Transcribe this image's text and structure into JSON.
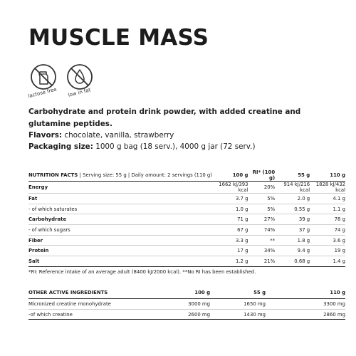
{
  "title": "MUSCLE MASS",
  "badges": [
    {
      "icon": "lactose-free-icon",
      "label": "lactose free"
    },
    {
      "icon": "low-in-fat-icon",
      "label": "low in fat"
    }
  ],
  "description": "Carbohydrate and protein drink powder, with added creatine and glutamine peptides.",
  "flavors": {
    "label": "Flavors:",
    "value": "chocolate, vanilla, strawberry"
  },
  "packaging": {
    "label": "Packaging size:",
    "value": "1000 g bag (18 serv.), 4000 g jar (72 serv.)"
  },
  "nutrition": {
    "title": "NUTRITION FACTS",
    "serving": "| Serving size: 55 g | Daily amount: 2 servings (110 g)",
    "columns": [
      "100 g",
      "RI* (100 g)",
      "55 g",
      "110 g"
    ],
    "rows": [
      {
        "name": "Energy",
        "v100": "1662 kJ/393 kcal",
        "ri": "20%",
        "v55": "914 kJ/216 kcal",
        "v110": "1828 kJ/432 kcal"
      },
      {
        "name": "Fat",
        "v100": "3.7 g",
        "ri": "5%",
        "v55": "2.0 g",
        "v110": "4.1 g"
      },
      {
        "name": "- of which saturates",
        "v100": "1.0 g",
        "ri": "5%",
        "v55": "0.55 g",
        "v110": "1.1 g"
      },
      {
        "name": "Carbohydrate",
        "v100": "71 g",
        "ri": "27%",
        "v55": "39 g",
        "v110": "78 g"
      },
      {
        "name": "- of which sugars",
        "v100": "67 g",
        "ri": "74%",
        "v55": "37 g",
        "v110": "74 g"
      },
      {
        "name": "Fiber",
        "v100": "3.3 g",
        "ri": "**",
        "v55": "1.8 g",
        "v110": "3.6 g"
      },
      {
        "name": "Protein",
        "v100": "17 g",
        "ri": "34%",
        "v55": "9.4 g",
        "v110": "19 g"
      },
      {
        "name": "Salt",
        "v100": "1.2 g",
        "ri": "21%",
        "v55": "0.68 g",
        "v110": "1.4 g"
      }
    ],
    "footnote": "*RI: Reference intake of an average adult (8400 kJ/2000 kcal). **No RI has been established."
  },
  "active": {
    "title": "OTHER ACTIVE INGREDIENTS",
    "columns": [
      "100 g",
      "55 g",
      "110 g"
    ],
    "rows": [
      {
        "name": "Micronized creatine monohydrate",
        "v100": "3000 mg",
        "v55": "1650 mg",
        "v110": "3300 mg"
      },
      {
        "name": "-of which creatine",
        "v100": "2600 mg",
        "v55": "1430 mg",
        "v110": "2860 mg"
      }
    ]
  }
}
